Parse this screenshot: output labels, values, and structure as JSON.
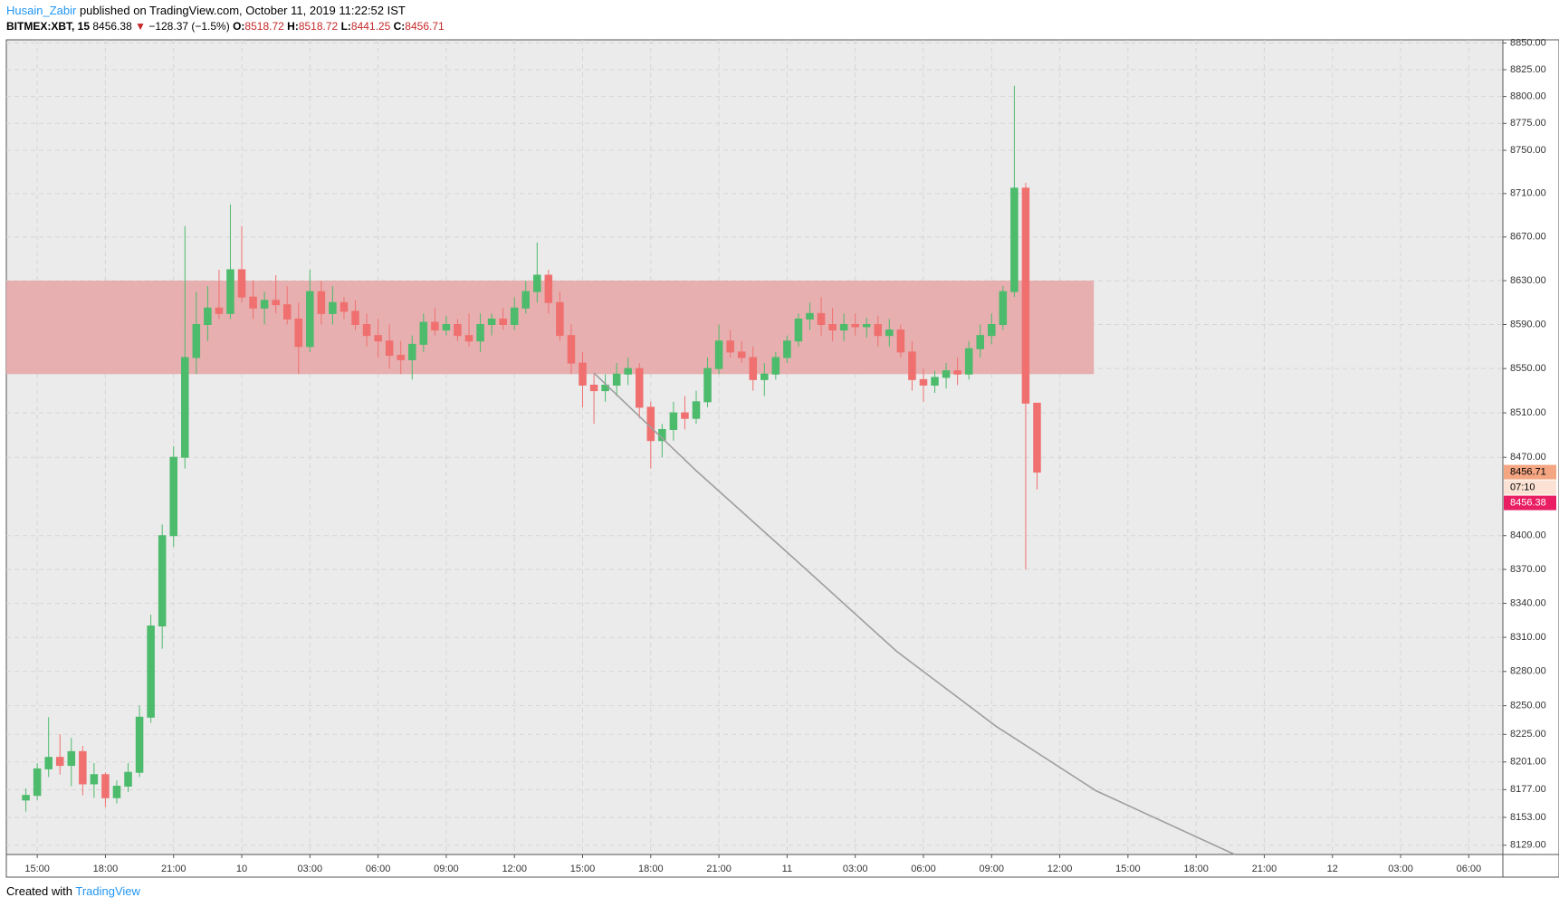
{
  "header": {
    "author": "Husain_Zabir",
    "published": "published on TradingView.com, October 11, 2019 11:22:52 IST",
    "symbol": "BITMEX:XBT, 15",
    "price": "8456.38",
    "arrow": "▼",
    "change": "−128.37 (−1.5%)",
    "o_label": "O:",
    "o": "8518.72",
    "h_label": "H:",
    "h": "8518.72",
    "l_label": "L:",
    "l": "8441.25",
    "c_label": "C:",
    "c": "8456.71"
  },
  "footer": {
    "created": "Created with",
    "brand": "TradingView"
  },
  "price_tags": {
    "close": "8456.71",
    "countdown": "07:10",
    "last": "8456.38"
  },
  "chart_data": {
    "type": "candlestick",
    "log_scale": true,
    "grid": true,
    "up_color": "#4cbb6c",
    "down_color": "#f07070",
    "xlim": [
      13.64,
      79.5
    ],
    "ylim": [
      8121,
      8853
    ],
    "xticks": [
      {
        "value": 15,
        "label": "15:00"
      },
      {
        "value": 18,
        "label": "18:00"
      },
      {
        "value": 21,
        "label": "21:00"
      },
      {
        "value": 24,
        "label": "10"
      },
      {
        "value": 27,
        "label": "03:00"
      },
      {
        "value": 30,
        "label": "06:00"
      },
      {
        "value": 33,
        "label": "09:00"
      },
      {
        "value": 36,
        "label": "12:00"
      },
      {
        "value": 39,
        "label": "15:00"
      },
      {
        "value": 42,
        "label": "18:00"
      },
      {
        "value": 45,
        "label": "21:00"
      },
      {
        "value": 48,
        "label": "11"
      },
      {
        "value": 51,
        "label": "03:00"
      },
      {
        "value": 54,
        "label": "06:00"
      },
      {
        "value": 57,
        "label": "09:00"
      },
      {
        "value": 60,
        "label": "12:00"
      },
      {
        "value": 63,
        "label": "15:00"
      },
      {
        "value": 66,
        "label": "18:00"
      },
      {
        "value": 69,
        "label": "21:00"
      },
      {
        "value": 72,
        "label": "12"
      },
      {
        "value": 75,
        "label": "03:00"
      },
      {
        "value": 78,
        "label": "06:00"
      }
    ],
    "yticks": [
      {
        "value": 8129,
        "label": "8129.00"
      },
      {
        "value": 8153,
        "label": "8153.00"
      },
      {
        "value": 8177,
        "label": "8177.00"
      },
      {
        "value": 8201,
        "label": "8201.00"
      },
      {
        "value": 8225,
        "label": "8225.00"
      },
      {
        "value": 8250,
        "label": "8250.00"
      },
      {
        "value": 8280,
        "label": "8280.00"
      },
      {
        "value": 8310,
        "label": "8310.00"
      },
      {
        "value": 8340,
        "label": "8340.00"
      },
      {
        "value": 8370,
        "label": "8370.00"
      },
      {
        "value": 8400,
        "label": "8400.00"
      },
      {
        "value": 8470,
        "label": "8470.00"
      },
      {
        "value": 8510,
        "label": "8510.00"
      },
      {
        "value": 8550,
        "label": "8550.00"
      },
      {
        "value": 8590,
        "label": "8590.00"
      },
      {
        "value": 8630,
        "label": "8630.00"
      },
      {
        "value": 8670,
        "label": "8670.00"
      },
      {
        "value": 8710,
        "label": "8710.00"
      },
      {
        "value": 8750,
        "label": "8750.00"
      },
      {
        "value": 8775,
        "label": "8775.00"
      },
      {
        "value": 8800,
        "label": "8800.00"
      },
      {
        "value": 8825,
        "label": "8825.00"
      },
      {
        "value": 8850,
        "label": "8850.00"
      }
    ],
    "x": [
      14.5,
      15,
      15.5,
      16,
      16.5,
      17,
      17.5,
      18,
      18.5,
      19,
      19.5,
      20,
      20.5,
      21,
      21.5,
      22,
      22.5,
      23,
      23.5,
      24,
      24.5,
      25,
      25.5,
      26,
      26.5,
      27,
      27.5,
      28,
      28.5,
      29,
      29.5,
      30,
      30.5,
      31,
      31.5,
      32,
      32.5,
      33,
      33.5,
      34,
      34.5,
      35,
      35.5,
      36,
      36.5,
      37,
      37.5,
      38,
      38.5,
      39,
      39.5,
      40,
      40.5,
      41,
      41.5,
      42,
      42.5,
      43,
      43.5,
      44,
      44.5,
      45,
      45.5,
      46,
      46.5,
      47,
      47.5,
      48,
      48.5,
      49,
      49.5,
      50,
      50.5,
      51,
      51.5,
      52,
      52.5,
      53,
      53.5,
      54,
      54.5,
      55,
      55.5,
      56,
      56.5,
      57,
      57.5,
      58,
      58.5,
      59
    ],
    "open": [
      8168,
      8172,
      8195,
      8205,
      8198,
      8210,
      8182,
      8190,
      8170,
      8180,
      8192,
      8240,
      8320,
      8400,
      8470,
      8560,
      8590,
      8605,
      8600,
      8640,
      8615,
      8605,
      8612,
      8608,
      8595,
      8570,
      8620,
      8600,
      8610,
      8602,
      8590,
      8580,
      8575,
      8562,
      8558,
      8572,
      8592,
      8585,
      8590,
      8580,
      8575,
      8590,
      8595,
      8590,
      8605,
      8620,
      8635,
      8610,
      8580,
      8555,
      8535,
      8530,
      8535,
      8545,
      8550,
      8515,
      8485,
      8495,
      8510,
      8505,
      8520,
      8550,
      8575,
      8565,
      8560,
      8540,
      8545,
      8560,
      8575,
      8595,
      8600,
      8590,
      8585,
      8590,
      8588,
      8590,
      8580,
      8585,
      8565,
      8540,
      8535,
      8542,
      8548,
      8545,
      8568,
      8580,
      8590,
      8620,
      8715,
      8518.72
    ],
    "high": [
      8178,
      8200,
      8240,
      8225,
      8222,
      8215,
      8200,
      8192,
      8185,
      8200,
      8250,
      8330,
      8410,
      8480,
      8680,
      8620,
      8625,
      8640,
      8700,
      8680,
      8630,
      8620,
      8635,
      8625,
      8610,
      8640,
      8630,
      8625,
      8615,
      8612,
      8600,
      8595,
      8590,
      8575,
      8580,
      8600,
      8605,
      8598,
      8595,
      8600,
      8600,
      8600,
      8605,
      8615,
      8630,
      8665,
      8640,
      8620,
      8590,
      8565,
      8545,
      8545,
      8555,
      8560,
      8555,
      8520,
      8500,
      8520,
      8525,
      8530,
      8560,
      8590,
      8585,
      8575,
      8570,
      8555,
      8565,
      8580,
      8600,
      8610,
      8615,
      8605,
      8600,
      8600,
      8596,
      8598,
      8595,
      8590,
      8575,
      8550,
      8548,
      8555,
      8560,
      8575,
      8590,
      8600,
      8625,
      8810,
      8720,
      8518.72
    ],
    "low": [
      8158,
      8168,
      8188,
      8190,
      8180,
      8172,
      8170,
      8162,
      8165,
      8175,
      8188,
      8235,
      8300,
      8390,
      8460,
      8545,
      8575,
      8595,
      8595,
      8610,
      8595,
      8590,
      8600,
      8590,
      8545,
      8565,
      8590,
      8590,
      8595,
      8585,
      8570,
      8560,
      8550,
      8545,
      8540,
      8565,
      8580,
      8580,
      8575,
      8570,
      8565,
      8580,
      8585,
      8585,
      8600,
      8610,
      8600,
      8575,
      8545,
      8515,
      8500,
      8520,
      8525,
      8535,
      8505,
      8460,
      8470,
      8485,
      8495,
      8500,
      8515,
      8545,
      8560,
      8555,
      8530,
      8525,
      8540,
      8555,
      8570,
      8585,
      8580,
      8575,
      8575,
      8580,
      8578,
      8570,
      8570,
      8560,
      8530,
      8520,
      8528,
      8532,
      8535,
      8540,
      8560,
      8572,
      8585,
      8615,
      8370,
      8441.25
    ],
    "close": [
      8172,
      8195,
      8205,
      8198,
      8210,
      8182,
      8190,
      8170,
      8180,
      8192,
      8240,
      8320,
      8400,
      8470,
      8560,
      8590,
      8605,
      8600,
      8640,
      8615,
      8605,
      8612,
      8608,
      8595,
      8570,
      8620,
      8600,
      8610,
      8602,
      8590,
      8580,
      8575,
      8562,
      8558,
      8572,
      8592,
      8585,
      8590,
      8580,
      8575,
      8590,
      8595,
      8590,
      8605,
      8620,
      8635,
      8610,
      8580,
      8555,
      8535,
      8530,
      8535,
      8545,
      8550,
      8515,
      8485,
      8495,
      8510,
      8505,
      8520,
      8550,
      8575,
      8565,
      8560,
      8540,
      8545,
      8560,
      8575,
      8595,
      8600,
      8590,
      8585,
      8590,
      8588,
      8590,
      8580,
      8585,
      8565,
      8540,
      8535,
      8542,
      8548,
      8545,
      8568,
      8580,
      8590,
      8620,
      8715,
      8518.72,
      8456.71
    ],
    "zone": {
      "color": "#e7a9a9",
      "x": [
        13.64,
        61.5
      ],
      "y": [
        8545,
        8630
      ]
    },
    "curve": {
      "color": "#9e9e9e",
      "x": [
        39.5,
        44.0,
        48.4,
        52.8,
        57.2,
        61.6,
        67.7
      ],
      "y": [
        8546,
        8458,
        8378,
        8298,
        8232,
        8176,
        8121
      ]
    }
  }
}
